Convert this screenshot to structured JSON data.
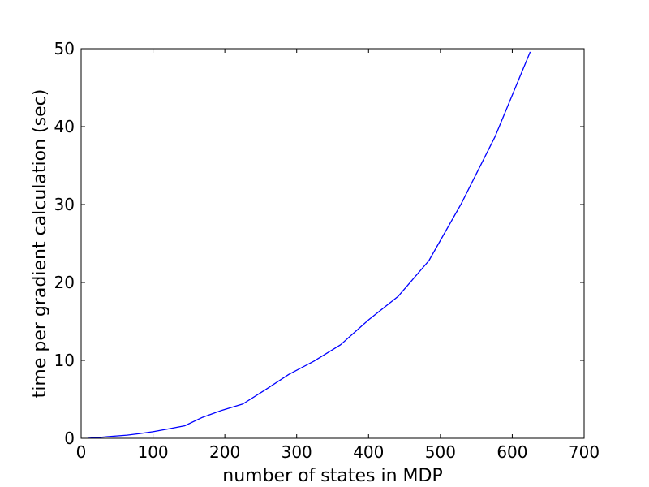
{
  "chart_data": {
    "type": "line",
    "title": "",
    "xlabel": "number of states in MDP",
    "ylabel": "time per gradient calculation (sec)",
    "xlim": [
      0,
      700
    ],
    "ylim": [
      0,
      50
    ],
    "xticks": [
      0,
      100,
      200,
      300,
      400,
      500,
      600,
      700
    ],
    "yticks": [
      0,
      10,
      20,
      30,
      40,
      50
    ],
    "xtick_labels": [
      "0",
      "100",
      "200",
      "300",
      "400",
      "500",
      "600",
      "700"
    ],
    "ytick_labels": [
      "0",
      "10",
      "20",
      "30",
      "40",
      "50"
    ],
    "grid": false,
    "legend": "none",
    "series": [
      {
        "color": "#0000ff",
        "x": [
          9,
          16,
          25,
          36,
          49,
          64,
          81,
          100,
          121,
          144,
          169,
          196,
          225,
          256,
          289,
          324,
          361,
          400,
          441,
          484,
          529,
          576,
          625
        ],
        "y": [
          0.0,
          0.05,
          0.1,
          0.2,
          0.3,
          0.4,
          0.6,
          0.85,
          1.2,
          1.6,
          2.7,
          3.6,
          4.4,
          6.2,
          8.2,
          9.9,
          12.0,
          15.2,
          18.2,
          22.8,
          30.1,
          38.7,
          49.6
        ]
      }
    ]
  }
}
